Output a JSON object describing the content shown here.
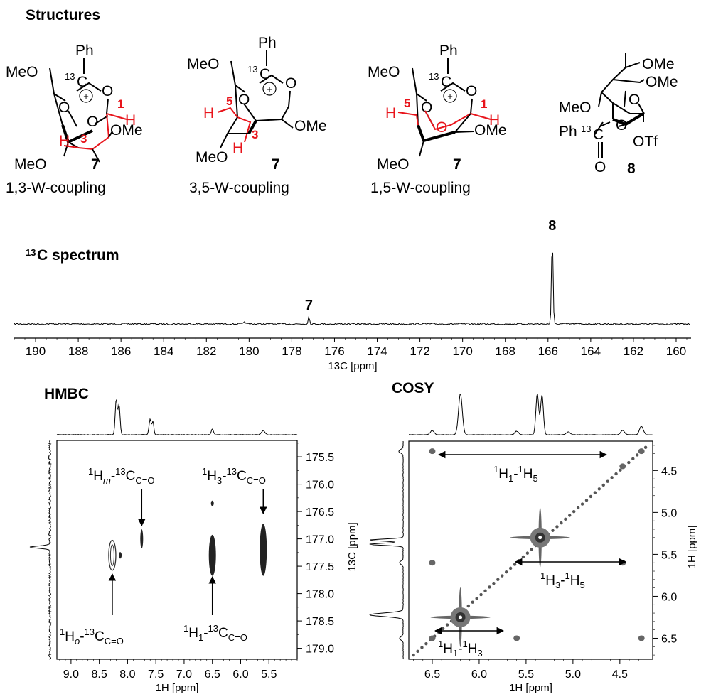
{
  "sections": {
    "structures": "Structures",
    "c13_spectrum_sup": "13",
    "c13_spectrum_rest": "C spectrum",
    "hmbc": "HMBC",
    "cosy": "COSY"
  },
  "structures": [
    {
      "compound": "7",
      "caption": "1,3-W-coupling",
      "labels": {
        "ph": "Ph",
        "label13": "13",
        "c": "C",
        "meo_top": "MeO",
        "meo_bottom": "MeO",
        "ome": "OMe",
        "oplus": "+"
      },
      "red_labels": [
        "1",
        "3",
        "H",
        "H"
      ]
    },
    {
      "compound": "7",
      "caption": "3,5-W-coupling",
      "labels": {
        "ph": "Ph",
        "label13": "13",
        "c": "C",
        "meo_top": "MeO",
        "meo_bottom": "MeO",
        "ome": "OMe",
        "oplus": "+"
      },
      "red_labels": [
        "5",
        "3",
        "H",
        "H"
      ]
    },
    {
      "compound": "7",
      "caption": "1,5-W-coupling",
      "labels": {
        "ph": "Ph",
        "label13": "13",
        "c": "C",
        "meo_top": "MeO",
        "meo_bottom": "MeO",
        "ome": "OMe",
        "oplus": "+"
      },
      "red_labels": [
        "5",
        "1",
        "H",
        "H"
      ]
    },
    {
      "compound": "8",
      "labels": {
        "ome1": "OMe",
        "ome2": "OMe",
        "meo": "MeO",
        "ph": "Ph",
        "label13": "13",
        "c": "C",
        "o": "O",
        "otf": "OTf"
      }
    }
  ],
  "colors": {
    "highlight": "#e8141b",
    "contour": "#4d4d4d",
    "line": "#000000"
  },
  "chart_data": [
    {
      "id": "c13",
      "type": "line",
      "title": "13C spectrum",
      "xlabel": "13C [ppm]",
      "xlim": [
        191,
        159.3
      ],
      "xticks": [
        190,
        188,
        186,
        184,
        182,
        180,
        178,
        176,
        174,
        172,
        170,
        168,
        166,
        164,
        162,
        160
      ],
      "peaks": [
        {
          "x": 165.8,
          "height": 1.0,
          "label": "8"
        },
        {
          "x": 177.2,
          "height": 0.08,
          "label": "7"
        },
        {
          "x": 180.2,
          "height": 0.03,
          "label": ""
        }
      ]
    },
    {
      "id": "hmbc",
      "type": "scatter",
      "title": "HMBC",
      "xlabel": "1H [ppm]",
      "ylabel": "13C [ppm]",
      "xlim": [
        9.25,
        5.0
      ],
      "ylim": [
        175.2,
        179.2
      ],
      "xticks": [
        "9.0",
        "8.5",
        "8.0",
        "7.5",
        "7.0",
        "6.5",
        "6.0",
        "5.5"
      ],
      "yticks": [
        "175.5",
        "176.0",
        "176.5",
        "177.0",
        "177.5",
        "178.0",
        "178.5",
        "179.0"
      ],
      "cross_peaks": [
        {
          "x": 8.27,
          "y": 177.3,
          "span": 0.55
        },
        {
          "x": 8.13,
          "y": 177.3,
          "span": 0.12
        },
        {
          "x": 7.75,
          "y": 177.0,
          "span": 0.35
        },
        {
          "x": 6.5,
          "y": 177.3,
          "span": 0.75
        },
        {
          "x": 6.5,
          "y": 176.35,
          "span": 0.1
        },
        {
          "x": 5.6,
          "y": 177.2,
          "span": 0.95
        }
      ],
      "annotations": [
        {
          "base": "1",
          "atom": "H",
          "sub": "m",
          "sub_italic": true,
          "dash": "-",
          "iso": "13",
          "c": "C",
          "csub": "C=O"
        },
        {
          "base": "1",
          "atom": "H",
          "sub": "3",
          "sub_italic": false,
          "dash": "-",
          "iso": "13",
          "c": "C",
          "csub": "C=O"
        },
        {
          "base": "1",
          "atom": "H",
          "sub": "o",
          "sub_italic": true,
          "dash": "-",
          "iso": "13",
          "c": "C",
          "csub": "C=O"
        },
        {
          "base": "1",
          "atom": "H",
          "sub": "1",
          "sub_italic": false,
          "dash": "-",
          "iso": "13",
          "c": "C",
          "csub": "C=O"
        }
      ]
    },
    {
      "id": "cosy",
      "type": "scatter",
      "title": "COSY",
      "xlabel": "1H [ppm]",
      "ylabel": "1H [ppm]",
      "xlim": [
        6.75,
        4.15
      ],
      "ylim": [
        4.15,
        6.75
      ],
      "xticks": [
        "6.5",
        "6.0",
        "5.5",
        "5.0",
        "4.5"
      ],
      "yticks": [
        "4.5",
        "5.0",
        "5.5",
        "6.0",
        "6.5"
      ],
      "cross_peaks": [
        {
          "x": 6.2,
          "y": 6.25,
          "big": true
        },
        {
          "x": 5.35,
          "y": 5.3,
          "big": true
        },
        {
          "x": 6.5,
          "y": 4.27
        },
        {
          "x": 4.27,
          "y": 4.27
        },
        {
          "x": 4.47,
          "y": 4.45
        },
        {
          "x": 6.5,
          "y": 5.6
        },
        {
          "x": 4.47,
          "y": 5.6
        },
        {
          "x": 6.5,
          "y": 6.5
        },
        {
          "x": 5.6,
          "y": 6.5
        },
        {
          "x": 4.27,
          "y": 6.5
        }
      ],
      "annotations": [
        {
          "base": "1",
          "atom1": "H",
          "sub1": "1",
          "dash": "-",
          "base2": "1",
          "atom2": "H",
          "sub2": "5"
        },
        {
          "base": "1",
          "atom1": "H",
          "sub1": "3",
          "dash": "-",
          "base2": "1",
          "atom2": "H",
          "sub2": "5"
        },
        {
          "base": "1",
          "atom1": "H",
          "sub1": "1",
          "dash": "-",
          "base2": "1",
          "atom2": "H",
          "sub2": "3"
        }
      ]
    }
  ]
}
